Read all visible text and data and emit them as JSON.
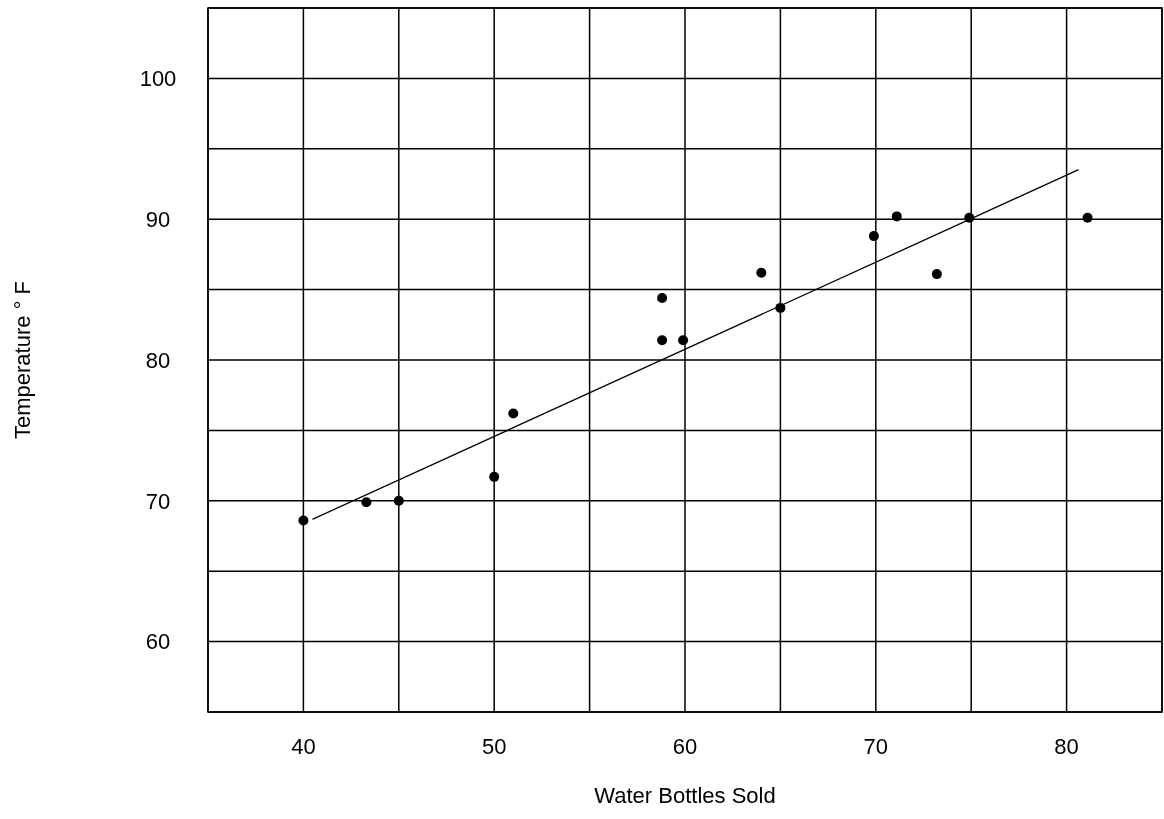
{
  "chart_data": {
    "type": "scatter",
    "xlabel": "Water Bottles Sold",
    "ylabel": "Temperature ° F",
    "series": [
      {
        "color": "#000000",
        "marker": "circle",
        "x": [
          40,
          43.3,
          45,
          50,
          51,
          58.8,
          58.8,
          59.9,
          64,
          65,
          69.9,
          71.1,
          73.2,
          74.9,
          81.1
        ],
        "values": [
          68.6,
          69.9,
          70,
          71.7,
          76.2,
          84.4,
          81.4,
          81.4,
          86.2,
          83.7,
          88.8,
          90.2,
          86.1,
          90.1,
          90.1
        ]
      },
      {
        "type": "line",
        "marker": "none",
        "color": "#000000",
        "x": [
          40.5,
          80.6
        ],
        "values": [
          68.7,
          93.5
        ]
      }
    ],
    "xlim": [
      35,
      85
    ],
    "ylim": [
      55,
      105
    ],
    "xticks": [
      {
        "value": 35,
        "label": null
      },
      40,
      {
        "value": 45,
        "label": null
      },
      50,
      {
        "value": 55,
        "label": null
      },
      60,
      {
        "value": 65,
        "label": null
      },
      70,
      {
        "value": 75,
        "label": null
      },
      80,
      {
        "value": 85,
        "label": null
      }
    ],
    "yticks": [
      {
        "value": 55,
        "label": null
      },
      60,
      {
        "value": 65,
        "label": null
      },
      70,
      {
        "value": 75,
        "label": null
      },
      80,
      {
        "value": 85,
        "label": null
      },
      90,
      {
        "value": 95,
        "label": null
      },
      100,
      {
        "value": 105,
        "label": null
      }
    ],
    "grid": true
  }
}
